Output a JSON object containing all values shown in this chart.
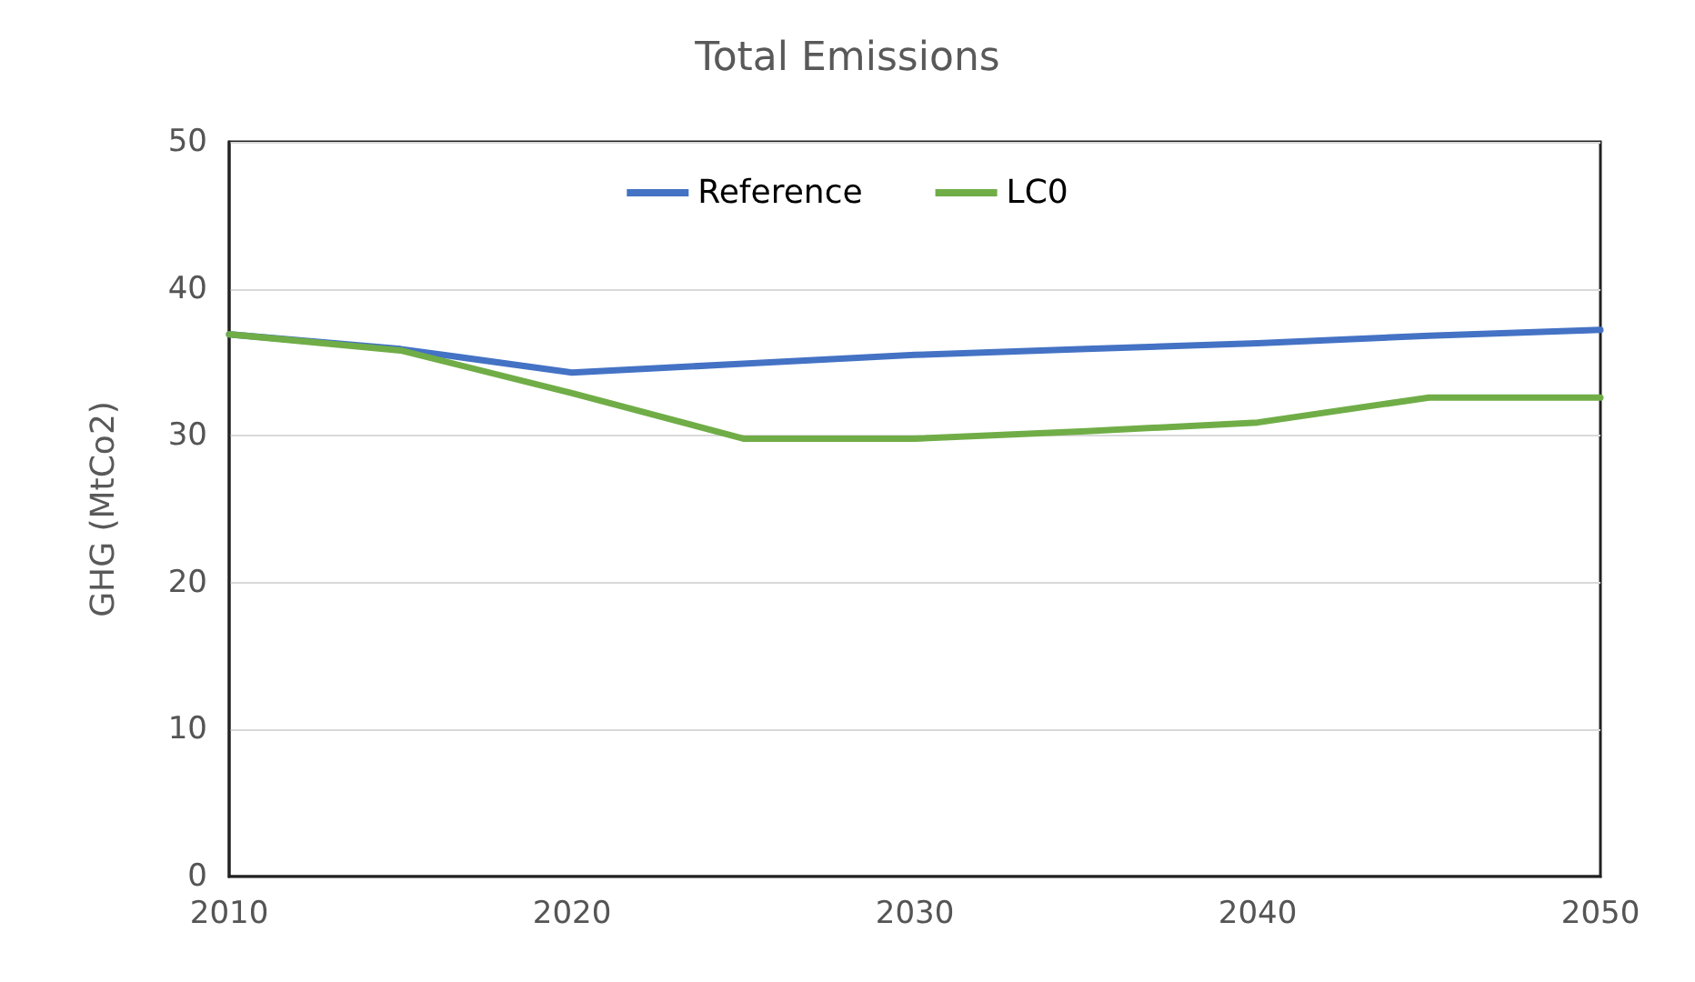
{
  "chart_data": {
    "type": "line",
    "title": "Total Emissions",
    "ylabel": "GHG (MtCo2)",
    "x": [
      2010,
      2015,
      2020,
      2025,
      2030,
      2035,
      2040,
      2045,
      2050
    ],
    "series": [
      {
        "name": "Reference",
        "color": "#4472c4",
        "values": [
          36.9,
          35.9,
          34.3,
          34.9,
          35.5,
          35.9,
          36.3,
          36.8,
          37.2
        ]
      },
      {
        "name": "LC0",
        "color": "#70ad47",
        "values": [
          36.9,
          35.8,
          32.9,
          29.8,
          29.8,
          30.3,
          30.9,
          32.6,
          32.6
        ]
      }
    ],
    "xlim": [
      2010,
      2050
    ],
    "xticks": [
      2010,
      2020,
      2030,
      2040,
      2050
    ],
    "ylim": [
      0,
      50
    ],
    "yticks": [
      0,
      10,
      20,
      30,
      40,
      50
    ],
    "grid": "y",
    "legend": "top",
    "marker": "none",
    "line_style": "solid"
  }
}
